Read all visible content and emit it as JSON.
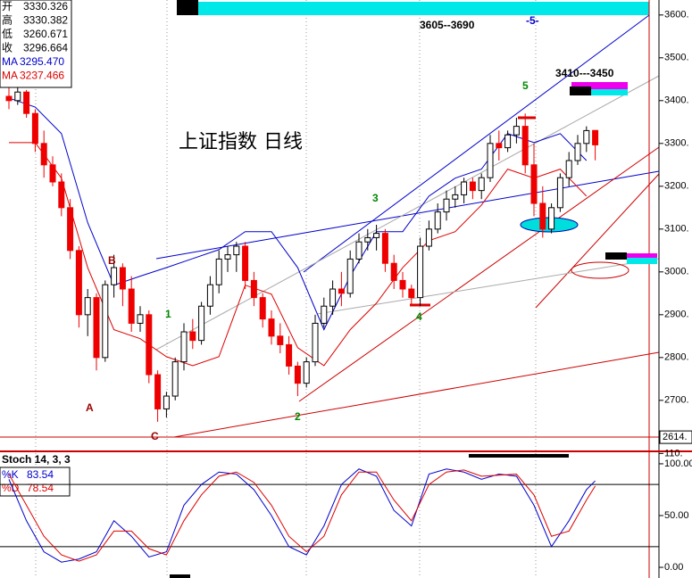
{
  "chart_data": {
    "type": "candlestick",
    "title": "上证指数 日线",
    "quote": [
      {
        "label": "开",
        "value": "3330.326",
        "color": "#000000"
      },
      {
        "label": "高",
        "value": "3330.382",
        "color": "#000000"
      },
      {
        "label": "低",
        "value": "3260.671",
        "color": "#000000"
      },
      {
        "label": "收",
        "value": "3296.664",
        "color": "#000000"
      },
      {
        "label": "MA",
        "value": "3295.470",
        "color": "#0000cc"
      },
      {
        "label": "MA",
        "value": "3237.466",
        "color": "#dd0000"
      }
    ],
    "annotations": [
      {
        "text": "3605--3690",
        "color": "#000000"
      },
      {
        "text": "-5-",
        "color": "#0000cc"
      },
      {
        "text": "3410---3450",
        "color": "#000000"
      },
      {
        "text": "1",
        "color": "#008800"
      },
      {
        "text": "2",
        "color": "#008800"
      },
      {
        "text": "3",
        "color": "#008800"
      },
      {
        "text": "4",
        "color": "#008800"
      },
      {
        "text": "5",
        "color": "#008800"
      },
      {
        "text": "A",
        "color": "#990000"
      },
      {
        "text": "B",
        "color": "#990000"
      },
      {
        "text": "C",
        "color": "#990000"
      }
    ],
    "up_color": "#ffffff",
    "down_color": "#ee0000",
    "candles": [
      [
        3410,
        3430,
        3380,
        3400
      ],
      [
        3400,
        3440,
        3390,
        3420
      ],
      [
        3420,
        3425,
        3360,
        3370
      ],
      [
        3370,
        3380,
        3280,
        3300
      ],
      [
        3300,
        3330,
        3220,
        3250
      ],
      [
        3250,
        3270,
        3200,
        3210
      ],
      [
        3210,
        3230,
        3130,
        3150
      ],
      [
        3150,
        3170,
        3030,
        3050
      ],
      [
        3050,
        3060,
        2870,
        2900
      ],
      [
        2900,
        2960,
        2850,
        2940
      ],
      [
        2940,
        2950,
        2770,
        2800
      ],
      [
        2800,
        2980,
        2790,
        2970
      ],
      [
        2970,
        3040,
        2940,
        3010
      ],
      [
        3010,
        3020,
        2920,
        2960
      ],
      [
        2960,
        2990,
        2860,
        2880
      ],
      [
        2880,
        2920,
        2860,
        2900
      ],
      [
        2900,
        2910,
        2740,
        2760
      ],
      [
        2760,
        2770,
        2650,
        2680
      ],
      [
        2680,
        2720,
        2660,
        2710
      ],
      [
        2710,
        2800,
        2700,
        2790
      ],
      [
        2790,
        2880,
        2770,
        2860
      ],
      [
        2860,
        2890,
        2820,
        2840
      ],
      [
        2840,
        2930,
        2830,
        2920
      ],
      [
        2920,
        2990,
        2900,
        2970
      ],
      [
        2970,
        3050,
        2950,
        3030
      ],
      [
        3030,
        3060,
        3000,
        3040
      ],
      [
        3040,
        3070,
        3000,
        3060
      ],
      [
        3060,
        3070,
        2960,
        2980
      ],
      [
        2980,
        3000,
        2920,
        2940
      ],
      [
        2940,
        2950,
        2870,
        2890
      ],
      [
        2890,
        2910,
        2830,
        2850
      ],
      [
        2850,
        2880,
        2810,
        2830
      ],
      [
        2830,
        2850,
        2760,
        2780
      ],
      [
        2780,
        2790,
        2710,
        2740
      ],
      [
        2740,
        2800,
        2730,
        2790
      ],
      [
        2790,
        2900,
        2780,
        2880
      ],
      [
        2880,
        2940,
        2870,
        2920
      ],
      [
        2920,
        2980,
        2900,
        2960
      ],
      [
        2960,
        3000,
        2920,
        2950
      ],
      [
        2950,
        3050,
        2940,
        3030
      ],
      [
        3030,
        3090,
        3020,
        3070
      ],
      [
        3070,
        3100,
        3050,
        3080
      ],
      [
        3080,
        3110,
        3050,
        3090
      ],
      [
        3090,
        3100,
        3000,
        3020
      ],
      [
        3020,
        3040,
        2960,
        2980
      ],
      [
        2980,
        3000,
        2940,
        2960
      ],
      [
        2960,
        2970,
        2920,
        2940
      ],
      [
        2940,
        3080,
        2920,
        3060
      ],
      [
        3060,
        3120,
        3050,
        3100
      ],
      [
        3100,
        3160,
        3090,
        3140
      ],
      [
        3140,
        3190,
        3120,
        3170
      ],
      [
        3170,
        3200,
        3150,
        3180
      ],
      [
        3180,
        3220,
        3160,
        3210
      ],
      [
        3210,
        3220,
        3170,
        3190
      ],
      [
        3190,
        3230,
        3170,
        3220
      ],
      [
        3220,
        3320,
        3210,
        3300
      ],
      [
        3300,
        3330,
        3260,
        3290
      ],
      [
        3290,
        3330,
        3280,
        3320
      ],
      [
        3320,
        3360,
        3300,
        3340
      ],
      [
        3340,
        3370,
        3230,
        3250
      ],
      [
        3250,
        3300,
        3130,
        3160
      ],
      [
        3160,
        3200,
        3080,
        3100
      ],
      [
        3100,
        3160,
        3090,
        3150
      ],
      [
        3150,
        3230,
        3140,
        3220
      ],
      [
        3220,
        3280,
        3200,
        3260
      ],
      [
        3260,
        3320,
        3250,
        3300
      ],
      [
        3300,
        3340,
        3280,
        3330
      ],
      [
        3330.326,
        3330.382,
        3260.671,
        3296.664
      ]
    ],
    "bands": {
      "x": [
        0,
        3,
        6,
        9,
        12,
        15,
        18,
        21,
        24,
        27,
        30,
        33,
        36,
        39,
        42,
        45,
        48,
        51,
        54,
        57,
        60,
        63,
        66
      ],
      "series": [
        {
          "color": "#0000cc",
          "values": [
            3406,
            3385,
            3323,
            3115,
            2969,
            2990,
            3010,
            3031,
            3052,
            3094,
            3094,
            3010,
            2865,
            2990,
            3094,
            3094,
            3177,
            3219,
            3240,
            3323,
            3302,
            3323,
            3260
          ]
        },
        {
          "color": "#dd0000",
          "values": [
            3302,
            3302,
            3219,
            3010,
            2865,
            2844,
            2802,
            2781,
            2802,
            2969,
            2948,
            2823,
            2781,
            2865,
            2927,
            3010,
            3073,
            3094,
            3156,
            3240,
            3219,
            3240,
            3177
          ]
        }
      ]
    },
    "ylim": [
      2583,
      3635
    ],
    "yticks": [
      {
        "value": 3600,
        "label": "3600."
      },
      {
        "value": 3500,
        "label": "3500."
      },
      {
        "value": 3400,
        "label": "3400."
      },
      {
        "value": 3300,
        "label": "3300."
      },
      {
        "value": 3200,
        "label": "3200."
      },
      {
        "value": 3100,
        "label": "3100."
      },
      {
        "value": 3000,
        "label": "3000."
      },
      {
        "value": 2900,
        "label": "2900."
      },
      {
        "value": 2800,
        "label": "2800."
      },
      {
        "value": 2700,
        "label": "2700."
      }
    ],
    "cursor": {
      "value": 2614,
      "label": "2614."
    },
    "stoch": {
      "title": "Stoch 14, 3, 3",
      "k_label": "%K",
      "k_value": 83.54,
      "d_label": "%D",
      "d_value": 78.54,
      "ylim": [
        -10.3,
        110.3
      ],
      "yticks": [
        {
          "value": 110,
          "label": "110."
        },
        {
          "value": 100,
          "label": "100.00"
        },
        {
          "value": 50,
          "label": "50.00"
        },
        {
          "value": 0,
          "label": "0.00"
        }
      ],
      "levels": [
        80,
        20
      ],
      "x": [
        0,
        2,
        4,
        6,
        8,
        10,
        12,
        14,
        16,
        18,
        20,
        22,
        24,
        26,
        28,
        30,
        32,
        34,
        36,
        38,
        40,
        42,
        44,
        46,
        48,
        50,
        52,
        54,
        56,
        58,
        60,
        62,
        64,
        66,
        67
      ],
      "series": [
        {
          "color": "#0000cc",
          "values": [
            85,
            45,
            15,
            5,
            8,
            15,
            45,
            30,
            10,
            15,
            60,
            80,
            92,
            90,
            75,
            50,
            20,
            12,
            40,
            80,
            95,
            88,
            55,
            40,
            90,
            95,
            92,
            85,
            90,
            88,
            60,
            20,
            45,
            75,
            83.54
          ]
        },
        {
          "color": "#dd0000",
          "values": [
            90,
            60,
            30,
            12,
            6,
            12,
            35,
            35,
            18,
            12,
            45,
            70,
            88,
            92,
            82,
            60,
            30,
            15,
            30,
            70,
            92,
            92,
            65,
            45,
            80,
            92,
            94,
            88,
            89,
            90,
            70,
            30,
            35,
            65,
            78.54
          ]
        }
      ]
    }
  }
}
